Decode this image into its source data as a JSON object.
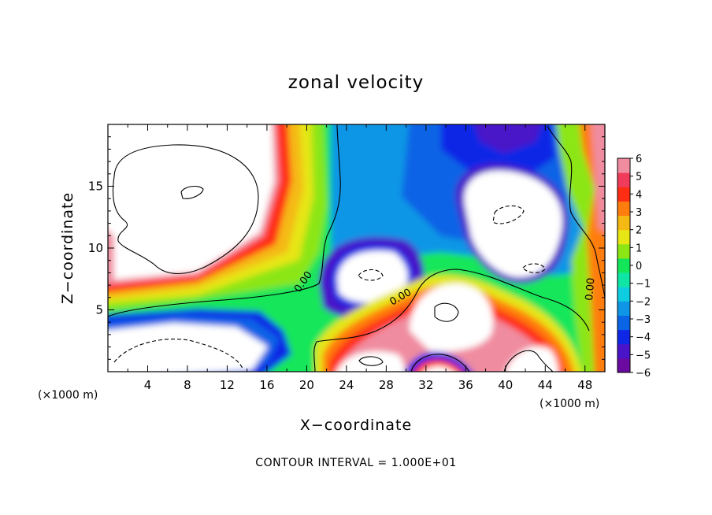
{
  "chart_data": {
    "type": "heatmap",
    "title": "zonal velocity",
    "xlabel": "X−coordinate",
    "ylabel": "Z−coordinate",
    "x_unit_label": "(×1000 m)",
    "z_unit_label": "(×1000 m)",
    "footer": "CONTOUR INTERVAL = 1.000E+01",
    "xlim": [
      0,
      50
    ],
    "ylim": [
      0,
      20
    ],
    "x_ticks": [
      4,
      8,
      12,
      16,
      20,
      24,
      28,
      32,
      36,
      40,
      44,
      48
    ],
    "y_ticks": [
      5,
      10,
      15
    ],
    "colorbar": {
      "ticks": [
        6,
        5,
        4,
        3,
        2,
        1,
        0,
        -1,
        -2,
        -3,
        -4,
        -5,
        -6
      ],
      "tick_labels": [
        "6",
        "5",
        "4",
        "3",
        "2",
        "1",
        "0",
        "−1",
        "−2",
        "−3",
        "−4",
        "−5",
        "−6"
      ],
      "colors": [
        "#6a0aa0",
        "#4a14c8",
        "#0f28e6",
        "#0a64e6",
        "#0f96e6",
        "#0fcde1",
        "#0fe6a5",
        "#14e65a",
        "#8ce614",
        "#e6e614",
        "#f5b914",
        "#ff7d0f",
        "#ff2d14",
        "#f03c5a",
        "#f08ca0"
      ]
    },
    "contour_labels": [
      "0.00",
      "0.00",
      "0.00"
    ]
  }
}
